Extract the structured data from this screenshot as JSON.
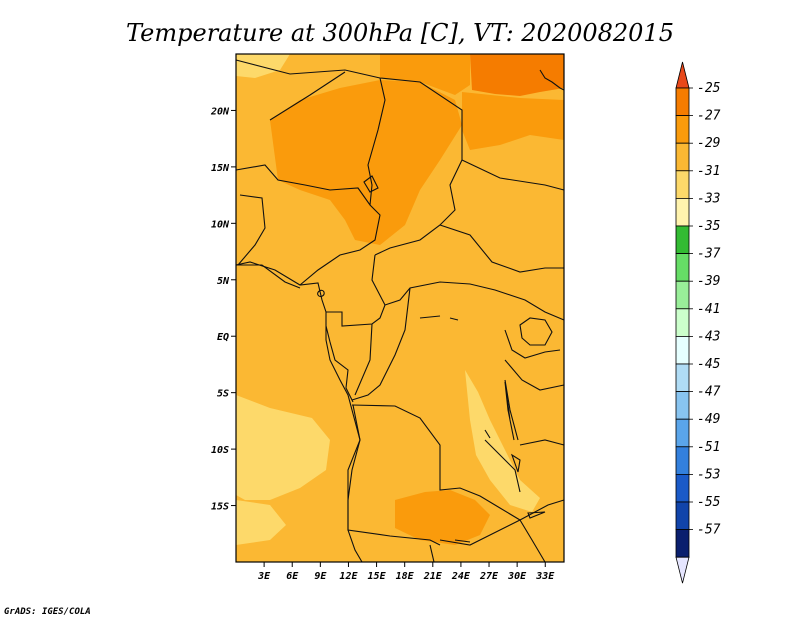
{
  "title": "Temperature at 300hPa [C], VT: 2020082015",
  "credit": "GrADS: IGES/COLA",
  "map": {
    "lon_range": [
      0,
      35
    ],
    "lat_range": [
      -20,
      25
    ],
    "x_ticks": [
      "3E",
      "6E",
      "9E",
      "12E",
      "15E",
      "18E",
      "21E",
      "24E",
      "27E",
      "30E",
      "33E"
    ],
    "y_ticks": [
      "20N",
      "15N",
      "10N",
      "5N",
      "EQ",
      "5S",
      "10S",
      "15S"
    ]
  },
  "colorbar": {
    "labels": [
      "-25",
      "-27",
      "-29",
      "-31",
      "-33",
      "-35",
      "-37",
      "-39",
      "-41",
      "-43",
      "-45",
      "-47",
      "-49",
      "-51",
      "-53",
      "-55",
      "-57"
    ],
    "colors": [
      "#e8481a",
      "#f57c00",
      "#fa9b0c",
      "#fbb833",
      "#fdd96a",
      "#fff3ae",
      "#33bb33",
      "#66dd66",
      "#99ee99",
      "#ccffcc",
      "#e6ffff",
      "#b0dcf5",
      "#88c4f0",
      "#5aa5ea",
      "#3380dd",
      "#1a5ac8",
      "#1144aa",
      "#0a1f6e",
      "#e6e6ff"
    ]
  }
}
